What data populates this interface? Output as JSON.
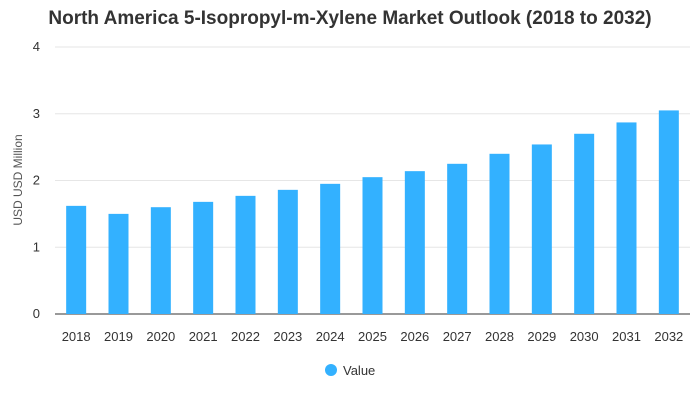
{
  "chart_data": {
    "type": "bar",
    "title": "North America 5-Isopropyl-m-Xylene Market Outlook (2018 to 2032)",
    "ylabel": "USD USD Million",
    "xlabel": "",
    "categories": [
      "2018",
      "2019",
      "2020",
      "2021",
      "2022",
      "2023",
      "2024",
      "2025",
      "2026",
      "2027",
      "2028",
      "2029",
      "2030",
      "2031",
      "2032"
    ],
    "series": [
      {
        "name": "Value",
        "values": [
          1.62,
          1.5,
          1.6,
          1.68,
          1.77,
          1.86,
          1.95,
          2.05,
          2.14,
          2.25,
          2.4,
          2.54,
          2.7,
          2.87,
          3.05
        ]
      }
    ],
    "ylim": [
      0,
      4
    ],
    "yticks": [
      0,
      1,
      2,
      3,
      4
    ],
    "grid": true,
    "legend_position": "bottom",
    "colors": {
      "bar": "#33b1ff",
      "grid": "#e6e6e6",
      "axis": "#333333"
    }
  }
}
